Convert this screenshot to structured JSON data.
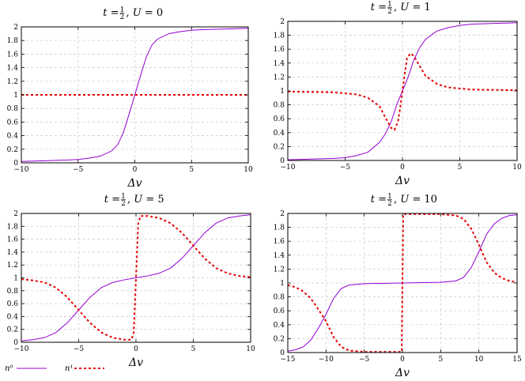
{
  "chart_data": [
    {
      "type": "line",
      "title": "t = 1/2, U = 0",
      "title_parts": {
        "t": "t",
        "t_num": "1",
        "t_den": "2",
        "u": "U",
        "u_val": "0"
      },
      "xlabel": "Δv",
      "xlim": [
        -10,
        10
      ],
      "ylim": [
        0,
        2
      ],
      "xticks": [
        -10,
        -5,
        0,
        5,
        10
      ],
      "yticks": [
        0,
        0.2,
        0.4,
        0.6,
        0.8,
        1,
        1.2,
        1.4,
        1.6,
        1.8,
        2
      ],
      "grid": true,
      "series": [
        {
          "name": "n⁰",
          "color": "#9400d3",
          "style": "solid",
          "x": [
            -10,
            -8,
            -6,
            -5,
            -4,
            -3,
            -2,
            -1.5,
            -1,
            -0.5,
            0,
            0.5,
            1,
            1.5,
            2,
            3,
            4,
            5,
            6,
            8,
            10
          ],
          "y": [
            0.02,
            0.03,
            0.04,
            0.05,
            0.07,
            0.1,
            0.18,
            0.27,
            0.45,
            0.72,
            1.0,
            1.28,
            1.55,
            1.73,
            1.82,
            1.9,
            1.93,
            1.95,
            1.96,
            1.97,
            1.98
          ]
        },
        {
          "name": "n¹",
          "color": "#e60000",
          "style": "dashed",
          "x": [
            -10,
            10
          ],
          "y": [
            1,
            1
          ]
        }
      ]
    },
    {
      "type": "line",
      "title": "t = 1/2, U = 1",
      "title_parts": {
        "t": "t",
        "t_num": "1",
        "t_den": "2",
        "u": "U",
        "u_val": "1"
      },
      "xlabel": "Δv",
      "xlim": [
        -10,
        10
      ],
      "ylim": [
        0,
        2
      ],
      "xticks": [
        -10,
        -5,
        0,
        5,
        10
      ],
      "yticks": [
        0,
        0.2,
        0.4,
        0.6,
        0.8,
        1,
        1.2,
        1.4,
        1.6,
        1.8,
        2
      ],
      "grid": true,
      "series": [
        {
          "name": "n⁰",
          "color": "#9400d3",
          "style": "solid",
          "x": [
            -10,
            -8,
            -6,
            -5,
            -4,
            -3,
            -2,
            -1.5,
            -1,
            -0.5,
            0,
            0.5,
            1,
            1.5,
            2,
            3,
            4,
            5,
            6,
            8,
            10
          ],
          "y": [
            0.01,
            0.02,
            0.03,
            0.04,
            0.07,
            0.12,
            0.26,
            0.38,
            0.55,
            0.8,
            1.0,
            1.2,
            1.45,
            1.62,
            1.74,
            1.86,
            1.91,
            1.94,
            1.96,
            1.97,
            1.98
          ]
        },
        {
          "name": "n¹",
          "color": "#e60000",
          "style": "dashed",
          "x": [
            -10,
            -6,
            -4,
            -3,
            -2,
            -1.5,
            -1,
            -0.7,
            -0.4,
            -0.2,
            0,
            0.2,
            0.4,
            0.7,
            1,
            1.5,
            2,
            3,
            4,
            6,
            10
          ],
          "y": [
            0.99,
            0.98,
            0.95,
            0.9,
            0.78,
            0.62,
            0.47,
            0.44,
            0.55,
            0.75,
            1.0,
            1.25,
            1.47,
            1.54,
            1.5,
            1.36,
            1.22,
            1.1,
            1.05,
            1.02,
            1.01
          ]
        }
      ]
    },
    {
      "type": "line",
      "title": "t = 1/2, U = 5",
      "title_parts": {
        "t": "t",
        "t_num": "1",
        "t_den": "2",
        "u": "U",
        "u_val": "5"
      },
      "xlabel": "Δv",
      "xlim": [
        -10,
        10
      ],
      "ylim": [
        0,
        2
      ],
      "xticks": [
        -10,
        -5,
        0,
        5,
        10
      ],
      "yticks": [
        0,
        0.2,
        0.4,
        0.6,
        0.8,
        1,
        1.2,
        1.4,
        1.6,
        1.8,
        2
      ],
      "grid": true,
      "series": [
        {
          "name": "n⁰",
          "color": "#9400d3",
          "style": "solid",
          "x": [
            -10,
            -9,
            -8,
            -7,
            -6,
            -5,
            -4,
            -3,
            -2,
            -1,
            0,
            1,
            2,
            3,
            4,
            5,
            6,
            7,
            8,
            9,
            10
          ],
          "y": [
            0.02,
            0.04,
            0.07,
            0.15,
            0.3,
            0.5,
            0.7,
            0.85,
            0.93,
            0.97,
            1.0,
            1.03,
            1.07,
            1.15,
            1.3,
            1.5,
            1.7,
            1.85,
            1.93,
            1.96,
            1.98
          ]
        },
        {
          "name": "n¹",
          "color": "#e60000",
          "style": "dashed",
          "x": [
            -10,
            -9,
            -8,
            -7,
            -6,
            -5,
            -4,
            -3,
            -2,
            -1,
            -0.4,
            -0.2,
            0,
            0.2,
            0.4,
            1,
            2,
            3,
            4,
            5,
            6,
            7,
            8,
            9,
            10
          ],
          "y": [
            0.98,
            0.96,
            0.93,
            0.85,
            0.7,
            0.5,
            0.3,
            0.15,
            0.07,
            0.04,
            0.04,
            0.15,
            1.0,
            1.85,
            1.96,
            1.96,
            1.93,
            1.85,
            1.7,
            1.5,
            1.3,
            1.15,
            1.07,
            1.03,
            1.01
          ]
        }
      ]
    },
    {
      "type": "line",
      "title": "t = 1/2, U = 10",
      "title_parts": {
        "t": "t",
        "t_num": "1",
        "t_den": "2",
        "u": "U",
        "u_val": "10"
      },
      "xlabel": "Δv",
      "xlim": [
        -15,
        15
      ],
      "ylim": [
        0,
        2
      ],
      "xticks": [
        -15,
        -10,
        -5,
        0,
        5,
        10,
        15
      ],
      "yticks": [
        0,
        0.2,
        0.4,
        0.6,
        0.8,
        1,
        1.2,
        1.4,
        1.6,
        1.8,
        2
      ],
      "grid": true,
      "series": [
        {
          "name": "n⁰",
          "color": "#9400d3",
          "style": "solid",
          "x": [
            -15,
            -14,
            -13,
            -12,
            -11,
            -10,
            -9,
            -8,
            -7,
            -5,
            0,
            5,
            7,
            8,
            9,
            10,
            11,
            12,
            13,
            14,
            15
          ],
          "y": [
            0.02,
            0.04,
            0.08,
            0.18,
            0.35,
            0.55,
            0.78,
            0.92,
            0.97,
            0.99,
            1.0,
            1.01,
            1.03,
            1.08,
            1.22,
            1.45,
            1.7,
            1.85,
            1.93,
            1.97,
            1.98
          ]
        },
        {
          "name": "n¹",
          "color": "#e60000",
          "style": "dashed",
          "x": [
            -15,
            -14,
            -13,
            -12,
            -11,
            -10,
            -9,
            -8,
            -7,
            -5,
            -1,
            -0.1,
            0,
            0.1,
            1,
            5,
            7,
            8,
            9,
            10,
            11,
            12,
            13,
            14,
            15
          ],
          "y": [
            0.97,
            0.94,
            0.88,
            0.78,
            0.62,
            0.45,
            0.22,
            0.08,
            0.03,
            0.01,
            0.01,
            0.01,
            1.0,
            1.99,
            1.99,
            1.99,
            1.97,
            1.92,
            1.78,
            1.55,
            1.3,
            1.15,
            1.07,
            1.03,
            1.01
          ]
        }
      ]
    }
  ],
  "legend": {
    "items": [
      {
        "label": "n⁰",
        "color": "#9400d3",
        "style": "solid"
      },
      {
        "label": "n¹",
        "color": "#e60000",
        "style": "dashed"
      }
    ]
  }
}
